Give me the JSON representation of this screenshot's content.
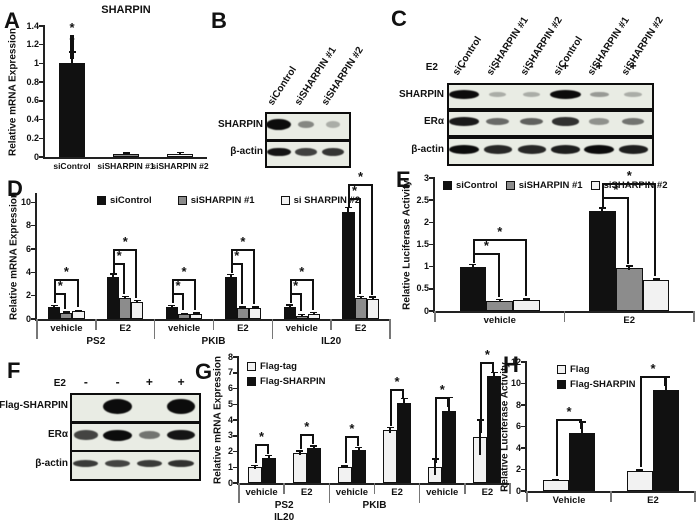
{
  "panel_letters": {
    "A": "A",
    "B": "B",
    "C": "C",
    "D": "D",
    "E": "E",
    "F": "F",
    "G": "G",
    "H": "H"
  },
  "colors": {
    "black_bar": "#111111",
    "gray_bar": "#8c8c8c",
    "white_bar": "#f2f2f2",
    "axis": "#222222",
    "blot_background": "#e9ece4",
    "band": "#0c0c0c"
  },
  "chart_data": [
    {
      "panel": "A",
      "type": "bar",
      "title": "SHARPIN",
      "ylabel": "Relative mRNA Expression",
      "ylim": [
        0,
        1.4
      ],
      "ytick": 0.2,
      "categories": [
        "siControl",
        "siSHARPIN #1",
        "siSHARPIN #2"
      ],
      "values": [
        1.0,
        0.03,
        0.035
      ],
      "errors": [
        0.12,
        0.01,
        0.012
      ],
      "colors": [
        "#111111",
        "#8c8c8c",
        "#f2f2f2"
      ],
      "sig_marker": "*",
      "sig": [
        {
          "from": 0,
          "to": 1
        },
        {
          "from": 0,
          "to": 2
        }
      ]
    },
    {
      "panel": "D",
      "type": "bar",
      "ylabel": "Relative mRNA Expression",
      "ylim": [
        0,
        10.8
      ],
      "ytick": 2,
      "categories": [
        "vehicle",
        "E2",
        "vehicle",
        "E2",
        "vehicle",
        "E2"
      ],
      "series": [
        {
          "name": "siControl",
          "color": "#111111",
          "values": [
            1.0,
            3.6,
            1.0,
            3.6,
            1.0,
            9.2
          ],
          "errors": [
            0.15,
            0.25,
            0.15,
            0.2,
            0.2,
            0.35
          ]
        },
        {
          "name": "siSHARPIN #1",
          "color": "#8c8c8c",
          "values": [
            0.5,
            1.8,
            0.4,
            0.95,
            0.3,
            1.8
          ],
          "errors": [
            0.06,
            0.1,
            0.05,
            0.06,
            0.05,
            0.12
          ]
        },
        {
          "name": "si SHARPIN #2",
          "color": "#f2f2f2",
          "values": [
            0.65,
            1.45,
            0.45,
            0.95,
            0.45,
            1.75
          ],
          "errors": [
            0.06,
            0.1,
            0.05,
            0.06,
            0.08,
            0.12
          ]
        }
      ],
      "group_labels": [
        {
          "text": "PS2",
          "from": 0,
          "to": 2
        },
        {
          "text": "PKIB",
          "from": 2,
          "to": 4
        },
        {
          "text": "IL20",
          "from": 4,
          "to": 6
        }
      ],
      "sig_marker": "*",
      "sig": [
        {
          "group": 0,
          "from": 0,
          "to": 1
        },
        {
          "group": 0,
          "from": 0,
          "to": 2
        },
        {
          "group": 1,
          "from": 0,
          "to": 1
        },
        {
          "group": 1,
          "from": 0,
          "to": 2
        },
        {
          "group": 2,
          "from": 0,
          "to": 1
        },
        {
          "group": 2,
          "from": 0,
          "to": 2
        },
        {
          "group": 3,
          "from": 0,
          "to": 1
        },
        {
          "group": 3,
          "from": 0,
          "to": 2
        },
        {
          "group": 4,
          "from": 0,
          "to": 1
        },
        {
          "group": 4,
          "from": 0,
          "to": 2
        },
        {
          "group": 5,
          "from": 0,
          "to": 1
        },
        {
          "group": 5,
          "from": 0,
          "to": 2
        }
      ]
    },
    {
      "panel": "E",
      "type": "bar",
      "ylabel": "Relative Luciferase Activity",
      "ylim": [
        0,
        3
      ],
      "ytick": 0.5,
      "categories": [
        "vehicle",
        "E2"
      ],
      "series": [
        {
          "name": "siControl",
          "color": "#111111",
          "values": [
            1.0,
            2.25
          ],
          "errors": [
            0.04,
            0.07
          ]
        },
        {
          "name": "siSHARPIN #1",
          "color": "#8c8c8c",
          "values": [
            0.23,
            0.97
          ],
          "errors": [
            0.02,
            0.04
          ]
        },
        {
          "name": "siSHARPIN #2",
          "color": "#f2f2f2",
          "values": [
            0.25,
            0.7
          ],
          "errors": [
            0.02,
            0.02
          ]
        }
      ],
      "sig_marker": "*",
      "sig": [
        {
          "group": 0,
          "from": 0,
          "to": 1
        },
        {
          "group": 0,
          "from": 0,
          "to": 2
        },
        {
          "group": 1,
          "from": 0,
          "to": 1
        },
        {
          "group": 1,
          "from": 0,
          "to": 2
        }
      ]
    },
    {
      "panel": "G",
      "type": "bar",
      "ylabel": "Relative mRNA Expression",
      "ylim": [
        0,
        8
      ],
      "ytick": 1,
      "categories": [
        "vehicle",
        "E2",
        "vehicle",
        "E2",
        "vehicle",
        "E2"
      ],
      "series": [
        {
          "name": "Flag-tag",
          "color": "#f2f2f2",
          "values": [
            1.0,
            1.9,
            1.0,
            3.35,
            1.0,
            2.9
          ],
          "errors": [
            0.08,
            0.12,
            0.06,
            0.15,
            0.5,
            1.1
          ]
        },
        {
          "name": "Flag-SHARPIN",
          "color": "#111111",
          "values": [
            1.6,
            2.2,
            2.1,
            5.1,
            4.6,
            6.8
          ],
          "errors": [
            0.12,
            0.12,
            0.15,
            0.25,
            0.8,
            0.2
          ]
        }
      ],
      "group_labels": [
        {
          "text": "PS2",
          "sub": "IL20",
          "from": 0,
          "to": 2
        },
        {
          "text": "PKIB",
          "from": 2,
          "to": 4
        }
      ],
      "sig_marker": "*",
      "sig": [
        {
          "group": 0,
          "from": 0,
          "to": 1
        },
        {
          "group": 1,
          "from": 0,
          "to": 1
        },
        {
          "group": 2,
          "from": 0,
          "to": 1
        },
        {
          "group": 3,
          "from": 0,
          "to": 1
        },
        {
          "group": 4,
          "from": 0,
          "to": 1
        },
        {
          "group": 5,
          "from": 0,
          "to": 1
        }
      ]
    },
    {
      "panel": "H",
      "type": "bar",
      "ylabel": "Relative Luciferase Activity",
      "ylim": [
        0,
        12
      ],
      "ytick": 2,
      "categories": [
        "Vehicle",
        "E2"
      ],
      "series": [
        {
          "name": "Flag",
          "color": "#f2f2f2",
          "values": [
            1.0,
            1.85
          ],
          "errors": [
            0.06,
            0.1
          ]
        },
        {
          "name": "Flag-SHARPIN",
          "color": "#111111",
          "values": [
            5.4,
            9.4
          ],
          "errors": [
            1.0,
            1.2
          ]
        }
      ],
      "sig_marker": "*",
      "sig": [
        {
          "group": 0,
          "from": 0,
          "to": 1
        },
        {
          "group": 1,
          "from": 0,
          "to": 1
        }
      ]
    }
  ],
  "blots": [
    {
      "panel": "B",
      "lanes": [
        "siControl",
        "siSHARPIN #1",
        "siSHARPIN #2"
      ],
      "rows": [
        {
          "label": "SHARPIN",
          "bands": [
            1,
            0.35,
            0.15
          ]
        },
        {
          "label": "β-actin",
          "bands": [
            0.95,
            0.72,
            0.78
          ]
        }
      ]
    },
    {
      "panel": "C",
      "lanes": [
        "siControl",
        "siSHARPIN #1",
        "siSHARPIN #2",
        "siControl",
        "siSHARPIN #1",
        "siSHARPIN #2"
      ],
      "cond": {
        "label": "E2",
        "values": [
          "-",
          "-",
          "-",
          "+",
          "+",
          "+"
        ]
      },
      "rows": [
        {
          "label": "SHARPIN",
          "bands": [
            1,
            0.15,
            0.15,
            1,
            0.25,
            0.15
          ]
        },
        {
          "label": "ERα",
          "bands": [
            0.92,
            0.5,
            0.55,
            0.8,
            0.3,
            0.45
          ]
        },
        {
          "label": "β-actin",
          "bands": [
            1,
            0.85,
            0.85,
            0.9,
            1,
            0.9
          ]
        }
      ]
    },
    {
      "panel": "F",
      "cond": {
        "label": "E2",
        "values": [
          "-",
          "-",
          "+",
          "+"
        ]
      },
      "rows": [
        {
          "label": "Flag-SHARPIN",
          "bands": [
            0,
            1,
            0,
            1
          ]
        },
        {
          "label": "ERα",
          "bands": [
            0.7,
            1,
            0.45,
            0.95
          ]
        },
        {
          "label": "β-actin",
          "bands": [
            0.75,
            0.7,
            0.75,
            0.8
          ]
        }
      ]
    }
  ]
}
